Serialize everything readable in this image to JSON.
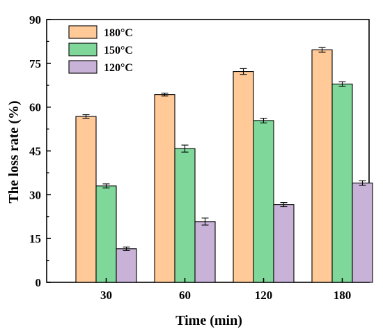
{
  "chart_data": {
    "type": "bar",
    "xlabel": "Time (min)",
    "ylabel": "The loss rate (%)",
    "ylim": [
      0,
      90
    ],
    "yticks": [
      0,
      15,
      30,
      45,
      60,
      75,
      90
    ],
    "categories": [
      "30",
      "60",
      "120",
      "180"
    ],
    "series": [
      {
        "name": "180°C",
        "color": "#FFC998",
        "values": [
          56.8,
          64.3,
          72.2,
          79.6
        ],
        "errors": [
          0.6,
          0.5,
          1.0,
          0.8
        ]
      },
      {
        "name": "150°C",
        "color": "#7FD89A",
        "values": [
          33.0,
          45.8,
          55.4,
          67.9
        ],
        "errors": [
          0.7,
          1.2,
          0.8,
          0.8
        ]
      },
      {
        "name": "120°C",
        "color": "#C8B2D8",
        "values": [
          11.5,
          20.8,
          26.6,
          34.0
        ],
        "errors": [
          0.6,
          1.2,
          0.7,
          0.8
        ]
      }
    ],
    "legend_position": "top-left",
    "grid": false
  }
}
